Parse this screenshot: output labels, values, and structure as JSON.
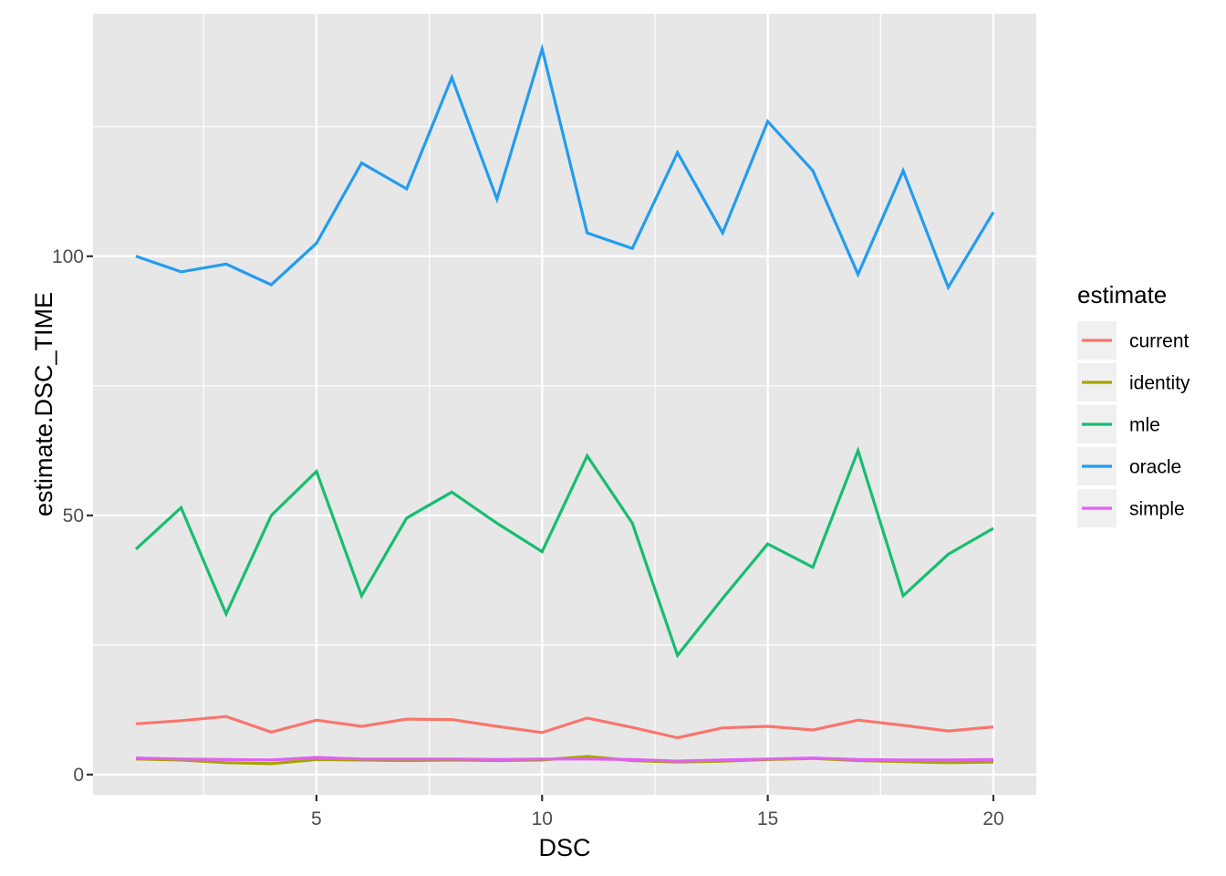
{
  "chart_data": {
    "type": "line",
    "title": "",
    "xlabel": "DSC",
    "ylabel": "estimate.DSC_TIME",
    "x": [
      1,
      2,
      3,
      4,
      5,
      6,
      7,
      8,
      9,
      10,
      11,
      12,
      13,
      14,
      15,
      16,
      17,
      18,
      19,
      20
    ],
    "series": [
      {
        "name": "current",
        "color": "#F8766D",
        "values": [
          9.8,
          10.4,
          11.2,
          8.2,
          10.5,
          9.3,
          10.7,
          10.6,
          9.3,
          8.1,
          10.9,
          9.1,
          7.1,
          9.0,
          9.3,
          8.6,
          10.5,
          9.5,
          8.4,
          9.2
        ]
      },
      {
        "name": "identity",
        "color": "#A6A400",
        "values": [
          3.0,
          2.8,
          2.3,
          2.1,
          2.9,
          2.8,
          2.7,
          2.8,
          2.7,
          2.8,
          3.5,
          2.7,
          2.4,
          2.6,
          2.9,
          3.1,
          2.7,
          2.5,
          2.3,
          2.4
        ]
      },
      {
        "name": "mle",
        "color": "#17BD70",
        "values": [
          43.5,
          51.5,
          31,
          50,
          58.5,
          34.5,
          49.5,
          54.5,
          48.5,
          43,
          61.5,
          48.5,
          23,
          34,
          44.5,
          40,
          62.5,
          34.5,
          42.5,
          47.5
        ]
      },
      {
        "name": "oracle",
        "color": "#239CEF",
        "values": [
          100,
          97,
          98.5,
          94.5,
          102.5,
          118,
          113,
          134.5,
          111,
          140,
          104.5,
          101.5,
          120,
          104.5,
          126,
          116.5,
          96.5,
          116.5,
          94,
          108.5
        ]
      },
      {
        "name": "simple",
        "color": "#E161F0",
        "values": [
          3.2,
          3.0,
          2.9,
          2.8,
          3.3,
          3.0,
          3.0,
          3.0,
          2.9,
          3.0,
          3.0,
          2.9,
          2.6,
          2.8,
          3.0,
          3.2,
          2.9,
          2.8,
          2.8,
          2.9
        ]
      }
    ],
    "x_ticks": [
      5,
      10,
      15,
      20
    ],
    "y_ticks": [
      0,
      50,
      100
    ],
    "x_minor_breaks": [
      2.5,
      7.5,
      12.5,
      17.5
    ],
    "y_minor_breaks": [
      25,
      75,
      125
    ],
    "xlim": [
      0.05,
      20.95
    ],
    "ylim": [
      -3.9,
      146.8
    ],
    "grid": true,
    "legend": {
      "title": "estimate",
      "position": "right",
      "entries": [
        "current",
        "identity",
        "mle",
        "oracle",
        "simple"
      ]
    },
    "colors": {
      "panel_bg": "#E7E7E7",
      "grid": "#FFFFFF",
      "tick_mark": "#333333",
      "tick_label": "#4D4D4D",
      "axis_title": "#000000",
      "legend_key_bg": "#F0F0F0",
      "page_bg": "#FFFFFF"
    }
  }
}
